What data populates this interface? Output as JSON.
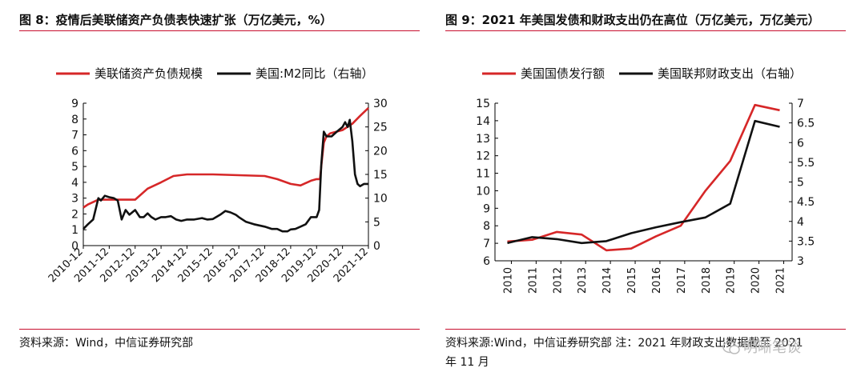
{
  "figure8": {
    "title": "图 8：疫情后美联储资产负债表快速扩张（万亿美元，%）",
    "source": "资料来源：Wind，中信证券研究部",
    "chart_data": {
      "type": "line",
      "legend": [
        "美联储资产负债规模",
        "美国:M2同比（右轴）"
      ],
      "legend_placement": "top",
      "series": [
        {
          "name": "美联储资产负债规模",
          "axis": "left",
          "color": "#d62728",
          "x": [
            2010.92,
            2011.1,
            2011.5,
            2011.92,
            2012.3,
            2012.92,
            2013.4,
            2013.92,
            2014.4,
            2014.92,
            2015.92,
            2016.92,
            2017.92,
            2018.4,
            2018.92,
            2019.3,
            2019.7,
            2019.92,
            2020.05,
            2020.12,
            2020.2,
            2020.3,
            2020.45,
            2020.92,
            2021.3,
            2021.6,
            2021.92
          ],
          "values": [
            2.4,
            2.6,
            2.9,
            2.9,
            2.9,
            2.9,
            3.6,
            4.0,
            4.4,
            4.5,
            4.5,
            4.45,
            4.4,
            4.2,
            3.9,
            3.8,
            4.1,
            4.2,
            4.2,
            5.3,
            6.5,
            6.9,
            7.1,
            7.3,
            7.7,
            8.2,
            8.7
          ]
        },
        {
          "name": "美国:M2同比（右轴）",
          "axis": "right",
          "color": "#111111",
          "x": [
            2010.92,
            2011.1,
            2011.3,
            2011.5,
            2011.6,
            2011.75,
            2011.92,
            2012.1,
            2012.25,
            2012.4,
            2012.55,
            2012.7,
            2012.92,
            2013.1,
            2013.25,
            2013.4,
            2013.55,
            2013.7,
            2013.92,
            2014.1,
            2014.3,
            2014.5,
            2014.7,
            2014.92,
            2015.2,
            2015.5,
            2015.7,
            2015.92,
            2016.2,
            2016.4,
            2016.6,
            2016.8,
            2016.92,
            2017.2,
            2017.5,
            2017.92,
            2018.2,
            2018.4,
            2018.6,
            2018.8,
            2018.92,
            2019.1,
            2019.3,
            2019.5,
            2019.7,
            2019.92,
            2020.02,
            2020.1,
            2020.2,
            2020.3,
            2020.5,
            2020.7,
            2020.92,
            2021.02,
            2021.12,
            2021.2,
            2021.3,
            2021.4,
            2021.5,
            2021.6,
            2021.75,
            2021.92
          ],
          "values": [
            3.5,
            4.5,
            5.5,
            10,
            9.5,
            10.5,
            10.2,
            10,
            9.5,
            5.5,
            7.5,
            6.5,
            7.5,
            6,
            6,
            6.8,
            6,
            5.5,
            6,
            6,
            6.2,
            5.5,
            5.2,
            5.5,
            5.5,
            5.8,
            5.5,
            5.6,
            6.5,
            7.3,
            7,
            6.5,
            6,
            5,
            4.5,
            4,
            3.5,
            3.5,
            3,
            3,
            3.4,
            3.5,
            4,
            4.5,
            6,
            6,
            7.5,
            17,
            24,
            23,
            23,
            24,
            25,
            26,
            25,
            26.5,
            22,
            15,
            13,
            12.5,
            13,
            13
          ]
        }
      ],
      "x_tick_labels": [
        "2010-12",
        "2011-12",
        "2012-12",
        "2013-12",
        "2014-12",
        "2015-12",
        "2016-12",
        "2017-12",
        "2018-12",
        "2019-12",
        "2020-12",
        "2021-12"
      ],
      "x_ticks": [
        2010.92,
        2011.92,
        2012.92,
        2013.92,
        2014.92,
        2015.92,
        2016.92,
        2017.92,
        2018.92,
        2019.92,
        2020.92,
        2021.92
      ],
      "xlim": [
        2010.92,
        2021.92
      ],
      "ylim_left": [
        0,
        9
      ],
      "yticks_left": [
        0,
        1,
        2,
        3,
        4,
        5,
        6,
        7,
        8,
        9
      ],
      "ylim_right": [
        0,
        30
      ],
      "yticks_right": [
        0,
        5,
        10,
        15,
        20,
        25,
        30
      ],
      "grid": false
    }
  },
  "figure9": {
    "title": "图 9：2021 年美国发债和财政支出仍在高位（万亿美元，万亿美元）",
    "source": "资料来源:Wind，中信证券研究部 注：2021 年财政支出数据截至 2021",
    "source_line2": "年 11 月",
    "watermark": "明晰笔谈",
    "chart_data": {
      "type": "line",
      "legend": [
        "美国国债发行额",
        "美国联邦财政支出（右轴）"
      ],
      "legend_placement": "top",
      "categories": [
        "2010",
        "2011",
        "2012",
        "2013",
        "2014",
        "2015",
        "2016",
        "2017",
        "2018",
        "2019",
        "2020",
        "2021"
      ],
      "series": [
        {
          "name": "美国国债发行额",
          "axis": "left",
          "color": "#d62728",
          "values": [
            7.1,
            7.2,
            7.65,
            7.5,
            6.6,
            6.7,
            7.4,
            8.0,
            10.0,
            11.7,
            14.9,
            14.6
          ]
        },
        {
          "name": "美国联邦财政支出（右轴）",
          "axis": "right",
          "color": "#111111",
          "values": [
            3.45,
            3.6,
            3.55,
            3.45,
            3.5,
            3.7,
            3.85,
            3.98,
            4.1,
            4.45,
            6.55,
            6.4
          ]
        }
      ],
      "ylim_left": [
        6,
        15
      ],
      "yticks_left": [
        6,
        7,
        8,
        9,
        10,
        11,
        12,
        13,
        14,
        15
      ],
      "ylim_right": [
        3,
        7
      ],
      "yticks_right": [
        3,
        3.5,
        4,
        4.5,
        5,
        5.5,
        6,
        6.5,
        7
      ],
      "grid": false
    }
  }
}
